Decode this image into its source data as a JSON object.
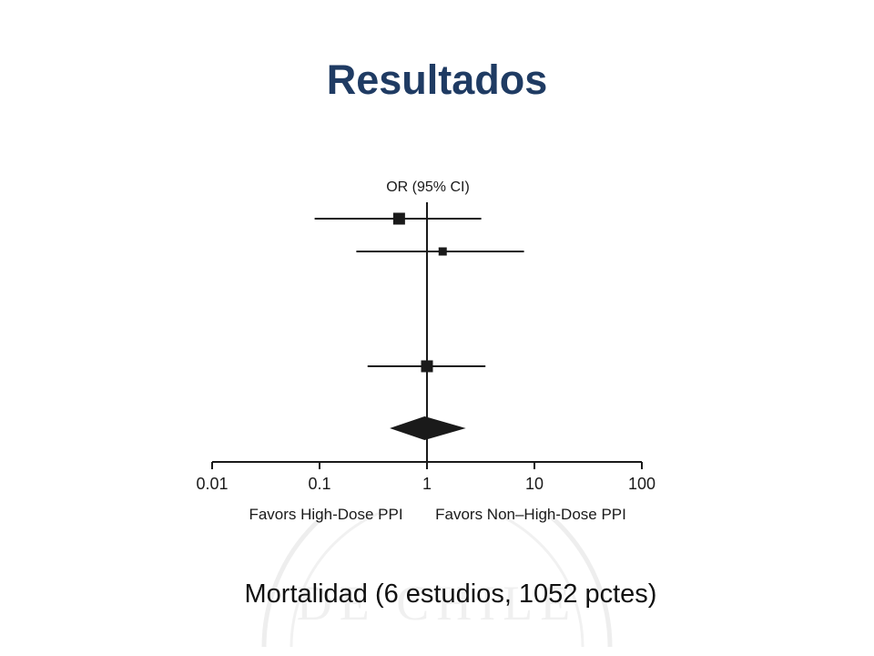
{
  "slide": {
    "title": "Resultados",
    "caption": "Mortalidad (6 estudios, 1052 pctes)"
  },
  "colors": {
    "title": "#1f3b63",
    "marks": "#1a1a1a",
    "watermark": "#eeeeee"
  },
  "chart_data": {
    "type": "forest",
    "x_scale": "log",
    "xlim": [
      0.01,
      100
    ],
    "ticks": [
      {
        "value": 0.01,
        "label": "0.01"
      },
      {
        "value": 0.1,
        "label": "0.1"
      },
      {
        "value": 1,
        "label": "1"
      },
      {
        "value": 10,
        "label": "10"
      },
      {
        "value": 100,
        "label": "100"
      }
    ],
    "header": "OR (95% CI)",
    "left_label": "Favors High-Dose PPI",
    "right_label": "Favors Non–High-Dose PPI",
    "reference_value": 1,
    "studies": [
      {
        "or": 0.55,
        "ci": [
          0.09,
          3.2
        ],
        "weight": "large"
      },
      {
        "or": 1.4,
        "ci": [
          0.22,
          8.0
        ],
        "weight": "small"
      },
      {
        "or": 1.0,
        "ci": [
          0.28,
          3.5
        ],
        "weight": "large"
      }
    ],
    "pooled": {
      "or": 0.95,
      "ci": [
        0.45,
        2.3
      ]
    }
  }
}
